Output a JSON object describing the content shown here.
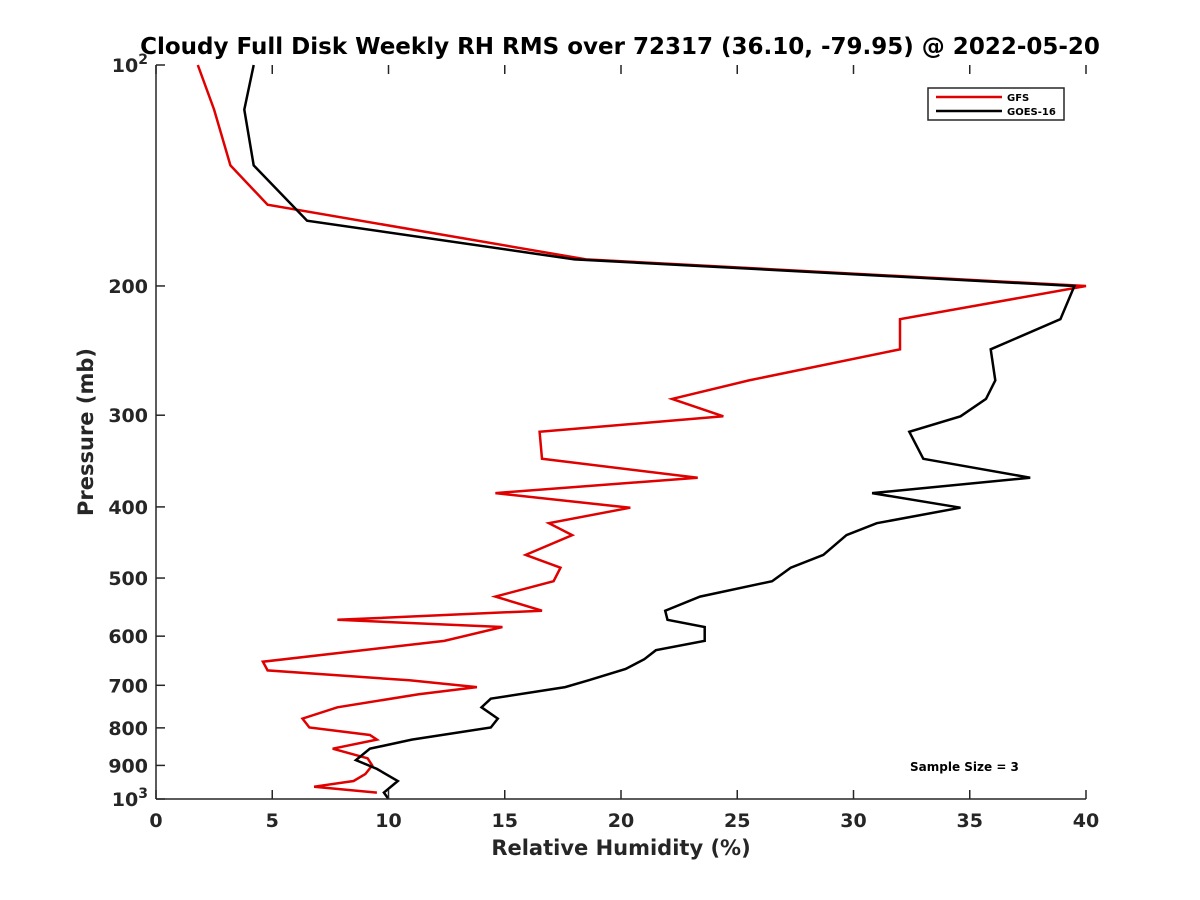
{
  "chart_data": {
    "type": "line",
    "title": "Cloudy Full Disk Weekly RH RMS over 72317 (36.10, -79.95) @ 2022-05-20",
    "xlabel": "Relative Humidity (%)",
    "ylabel": "Pressure (mb)",
    "xlim": [
      0,
      40
    ],
    "ylim": [
      100,
      1000
    ],
    "y_scale": "log",
    "y_reversed": true,
    "x_ticks": [
      "0",
      "5",
      "10",
      "15",
      "20",
      "25",
      "30",
      "35",
      "40"
    ],
    "y_ticks": [
      {
        "value": 100,
        "base": "10",
        "exp": "2"
      },
      {
        "value": 200,
        "label": "200"
      },
      {
        "value": 300,
        "label": "300"
      },
      {
        "value": 400,
        "label": "400"
      },
      {
        "value": 500,
        "label": "500"
      },
      {
        "value": 600,
        "label": "600"
      },
      {
        "value": 700,
        "label": "700"
      },
      {
        "value": 800,
        "label": "800"
      },
      {
        "value": 900,
        "label": "900"
      },
      {
        "value": 1000,
        "base": "10",
        "exp": "3"
      }
    ],
    "legend_position": "top-right",
    "annotation": "Sample Size = 3",
    "series": [
      {
        "name": "GFS",
        "color": "#e00000",
        "points": [
          [
            1.8,
            100
          ],
          [
            2.5,
            115
          ],
          [
            3.2,
            137
          ],
          [
            4.8,
            155
          ],
          [
            18.5,
            184
          ],
          [
            40.0,
            200
          ],
          [
            32.0,
            222
          ],
          [
            32.0,
            244
          ],
          [
            25.5,
            269
          ],
          [
            22.2,
            285
          ],
          [
            24.4,
            301
          ],
          [
            16.5,
            316
          ],
          [
            16.6,
            344
          ],
          [
            23.3,
            365
          ],
          [
            14.6,
            383
          ],
          [
            20.4,
            401
          ],
          [
            16.9,
            421
          ],
          [
            17.9,
            437
          ],
          [
            15.9,
            465
          ],
          [
            17.4,
            484
          ],
          [
            17.1,
            505
          ],
          [
            14.6,
            530
          ],
          [
            16.6,
            554
          ],
          [
            7.8,
            570
          ],
          [
            14.9,
            583
          ],
          [
            12.4,
            609
          ],
          [
            4.6,
            650
          ],
          [
            4.8,
            668
          ],
          [
            10.9,
            689
          ],
          [
            13.8,
            704
          ],
          [
            11.3,
            720
          ],
          [
            7.8,
            750
          ],
          [
            6.3,
            777
          ],
          [
            6.6,
            799
          ],
          [
            9.2,
            818
          ],
          [
            9.5,
            830
          ],
          [
            7.6,
            854
          ],
          [
            9.1,
            880
          ],
          [
            9.3,
            900
          ],
          [
            9.0,
            925
          ],
          [
            8.5,
            945
          ],
          [
            6.8,
            962
          ],
          [
            9.5,
            980
          ]
        ]
      },
      {
        "name": "GOES-16",
        "color": "#000000",
        "points": [
          [
            4.2,
            100
          ],
          [
            3.8,
            115
          ],
          [
            4.2,
            137
          ],
          [
            6.5,
            163
          ],
          [
            18.0,
            184
          ],
          [
            39.5,
            200
          ],
          [
            38.9,
            222
          ],
          [
            35.9,
            244
          ],
          [
            36.1,
            269
          ],
          [
            35.7,
            285
          ],
          [
            34.6,
            301
          ],
          [
            32.4,
            316
          ],
          [
            33.0,
            344
          ],
          [
            37.6,
            365
          ],
          [
            30.8,
            383
          ],
          [
            34.6,
            401
          ],
          [
            31.0,
            421
          ],
          [
            29.7,
            437
          ],
          [
            28.7,
            465
          ],
          [
            27.3,
            484
          ],
          [
            26.5,
            505
          ],
          [
            23.4,
            530
          ],
          [
            21.9,
            554
          ],
          [
            22.0,
            570
          ],
          [
            23.6,
            583
          ],
          [
            23.6,
            609
          ],
          [
            21.5,
            627
          ],
          [
            21.0,
            645
          ],
          [
            20.2,
            665
          ],
          [
            18.6,
            689
          ],
          [
            17.6,
            704
          ],
          [
            14.4,
            730
          ],
          [
            14.0,
            750
          ],
          [
            14.7,
            777
          ],
          [
            14.4,
            799
          ],
          [
            11.0,
            830
          ],
          [
            9.2,
            854
          ],
          [
            8.6,
            885
          ],
          [
            9.5,
            910
          ],
          [
            10.4,
            945
          ],
          [
            9.8,
            980
          ],
          [
            10.0,
            1000
          ]
        ]
      }
    ]
  }
}
